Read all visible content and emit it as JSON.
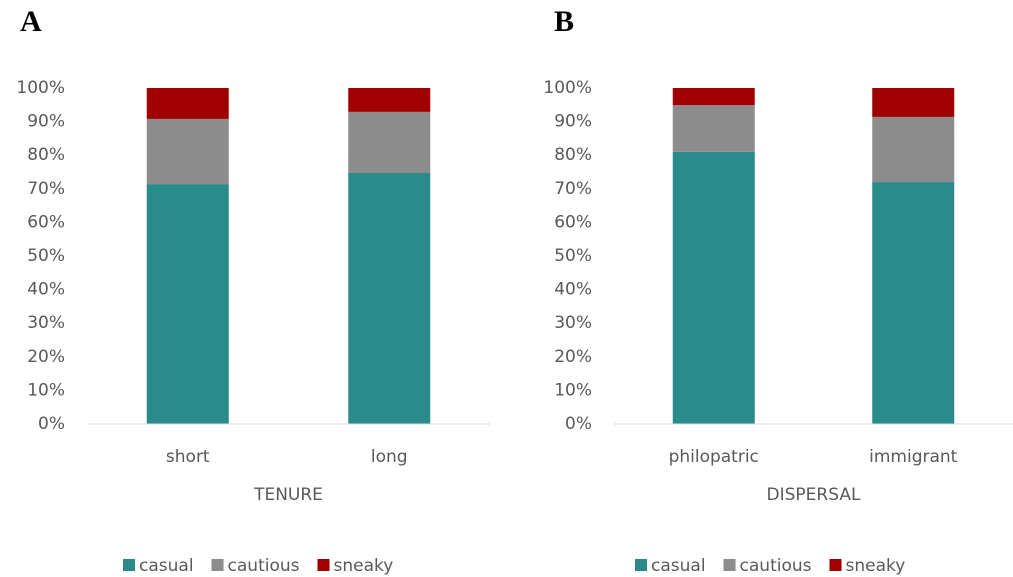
{
  "chart_data": [
    {
      "type": "stacked_bar",
      "panel_label": "A",
      "x_label": "TENURE",
      "categories": [
        "short",
        "long"
      ],
      "series": [
        {
          "name": "casual",
          "color": "#2a8b8b",
          "values": [
            71.4,
            74.7
          ]
        },
        {
          "name": "cautious",
          "color": "#8c8c8c",
          "values": [
            19.4,
            18.2
          ]
        },
        {
          "name": "sneaky",
          "color": "#a00000",
          "values": [
            9.2,
            7.1
          ]
        }
      ],
      "ylim": [
        0,
        100
      ],
      "yticks": [
        {
          "value": 0,
          "label": "0%"
        },
        {
          "value": 10,
          "label": "10%"
        },
        {
          "value": 20,
          "label": "20%"
        },
        {
          "value": 30,
          "label": "30%"
        },
        {
          "value": 40,
          "label": "40%"
        },
        {
          "value": 50,
          "label": "50%"
        },
        {
          "value": 60,
          "label": "60%"
        },
        {
          "value": 70,
          "label": "70%"
        },
        {
          "value": 80,
          "label": "80%"
        },
        {
          "value": 90,
          "label": "90%"
        },
        {
          "value": 100,
          "label": "100%"
        }
      ],
      "legend": "bottom"
    },
    {
      "type": "stacked_bar",
      "panel_label": "B",
      "x_label": "DISPERSAL",
      "categories": [
        "philopatric",
        "immigrant"
      ],
      "series": [
        {
          "name": "casual",
          "color": "#2a8b8b",
          "values": [
            81.0,
            72.0
          ]
        },
        {
          "name": "cautious",
          "color": "#8c8c8c",
          "values": [
            13.9,
            19.4
          ]
        },
        {
          "name": "sneaky",
          "color": "#a00000",
          "values": [
            5.1,
            8.6
          ]
        }
      ],
      "ylim": [
        0,
        100
      ],
      "yticks": [
        {
          "value": 0,
          "label": "0%"
        },
        {
          "value": 10,
          "label": "10%"
        },
        {
          "value": 20,
          "label": "20%"
        },
        {
          "value": 30,
          "label": "30%"
        },
        {
          "value": 40,
          "label": "40%"
        },
        {
          "value": 50,
          "label": "50%"
        },
        {
          "value": 60,
          "label": "60%"
        },
        {
          "value": 70,
          "label": "70%"
        },
        {
          "value": 80,
          "label": "80%"
        },
        {
          "value": 90,
          "label": "90%"
        },
        {
          "value": 100,
          "label": "100%"
        }
      ],
      "legend": "bottom"
    }
  ]
}
